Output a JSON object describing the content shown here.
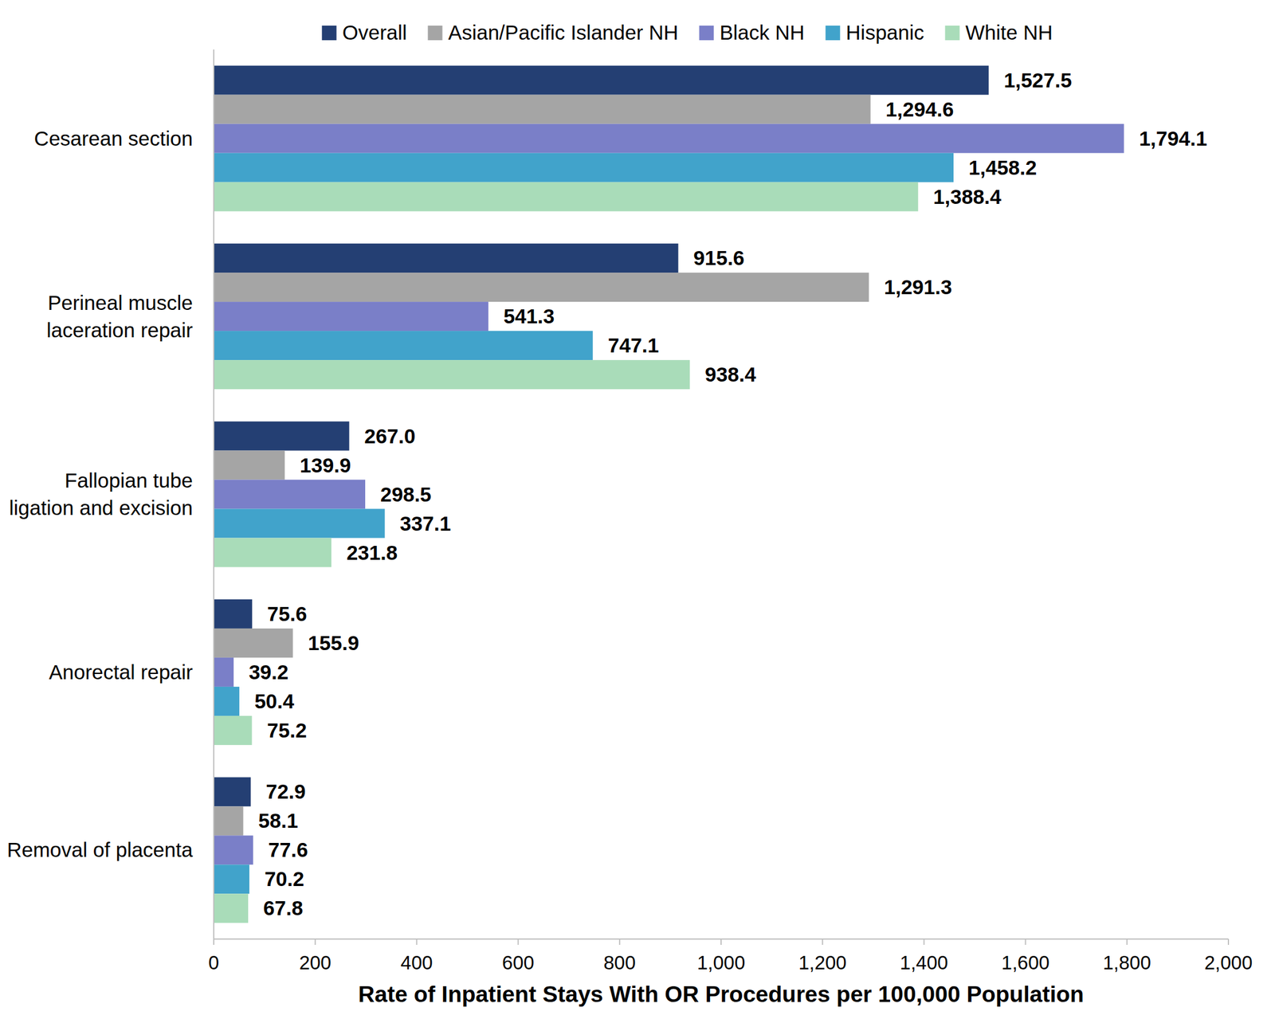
{
  "chart_data": {
    "type": "bar",
    "orientation": "horizontal",
    "xlabel": "Rate of Inpatient Stays With OR Procedures per 100,000 Population",
    "categories": [
      "Cesarean section",
      "Perineal muscle laceration repair",
      "Fallopian tube ligation and excision",
      "Anorectal repair",
      "Removal of placenta"
    ],
    "series": [
      {
        "name": "Overall",
        "color": "#243f73",
        "values": [
          1527.5,
          915.6,
          267.0,
          75.6,
          72.9
        ],
        "value_labels": [
          "1,527.5",
          "915.6",
          "267.0",
          "75.6",
          "72.9"
        ]
      },
      {
        "name": "Asian/Pacific Islander NH",
        "color": "#a5a5a5",
        "values": [
          1294.6,
          1291.3,
          139.9,
          155.9,
          58.1
        ],
        "value_labels": [
          "1,294.6",
          "1,291.3",
          "139.9",
          "155.9",
          "58.1"
        ]
      },
      {
        "name": "Black NH",
        "color": "#7a7fc8",
        "values": [
          1794.1,
          541.3,
          298.5,
          39.2,
          77.6
        ],
        "value_labels": [
          "1,794.1",
          "541.3",
          "298.5",
          "39.2",
          "77.6"
        ]
      },
      {
        "name": "Hispanic",
        "color": "#41a3cb",
        "values": [
          1458.2,
          747.1,
          337.1,
          50.4,
          70.2
        ],
        "value_labels": [
          "1,458.2",
          "747.1",
          "337.1",
          "50.4",
          "70.2"
        ]
      },
      {
        "name": "White NH",
        "color": "#a9dcb9",
        "values": [
          1388.4,
          938.4,
          231.8,
          75.2,
          67.8
        ],
        "value_labels": [
          "1,388.4",
          "938.4",
          "231.8",
          "75.2",
          "67.8"
        ]
      }
    ],
    "xlim": [
      0,
      2000
    ],
    "xticks": [
      0,
      200,
      400,
      600,
      800,
      {
        "value": 1000,
        "label": "1,000"
      },
      {
        "value": 1200,
        "label": "1,200"
      },
      {
        "value": 1400,
        "label": "1,400"
      },
      {
        "value": 1600,
        "label": "1,600"
      },
      {
        "value": 1800,
        "label": "1,800"
      },
      {
        "value": 2000,
        "label": "2,000"
      }
    ],
    "grid": false,
    "legend": "top",
    "data_labels": true
  }
}
